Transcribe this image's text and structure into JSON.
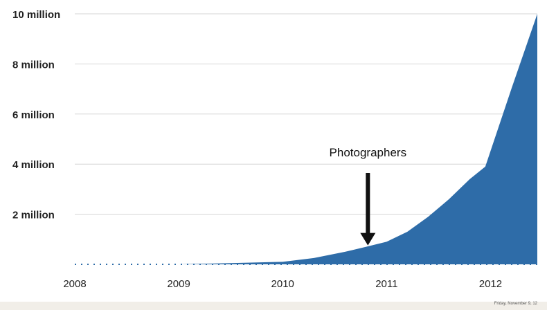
{
  "chart_data": {
    "type": "area",
    "title": "",
    "xlabel": "",
    "ylabel": "",
    "x": [
      2008.0,
      2009.0,
      2009.5,
      2010.0,
      2010.3,
      2010.6,
      2010.8,
      2011.0,
      2011.2,
      2011.4,
      2011.6,
      2011.8,
      2011.95,
      2012.2,
      2012.45
    ],
    "values": [
      0,
      0,
      0.05,
      0.1,
      0.25,
      0.5,
      0.7,
      0.9,
      1.3,
      1.9,
      2.6,
      3.4,
      3.9,
      7.0,
      10.0
    ],
    "xlim": [
      2008.0,
      2012.45
    ],
    "ylim": [
      0,
      10
    ],
    "x_ticks": [
      "2008",
      "2009",
      "2010",
      "2011",
      "2012"
    ],
    "x_tick_values": [
      2008,
      2009,
      2010,
      2011,
      2012
    ],
    "y_ticks": [
      "2 million",
      "4 million",
      "6 million",
      "8 million",
      "10 million"
    ],
    "y_tick_values": [
      2,
      4,
      6,
      8,
      10
    ],
    "grid": true,
    "fill_color": "#2e6ca8",
    "annotation": {
      "text": "Photographers",
      "x": 2010.82,
      "y": 0.7
    }
  },
  "footer": {
    "date_text": "Friday, November 9, 12"
  }
}
